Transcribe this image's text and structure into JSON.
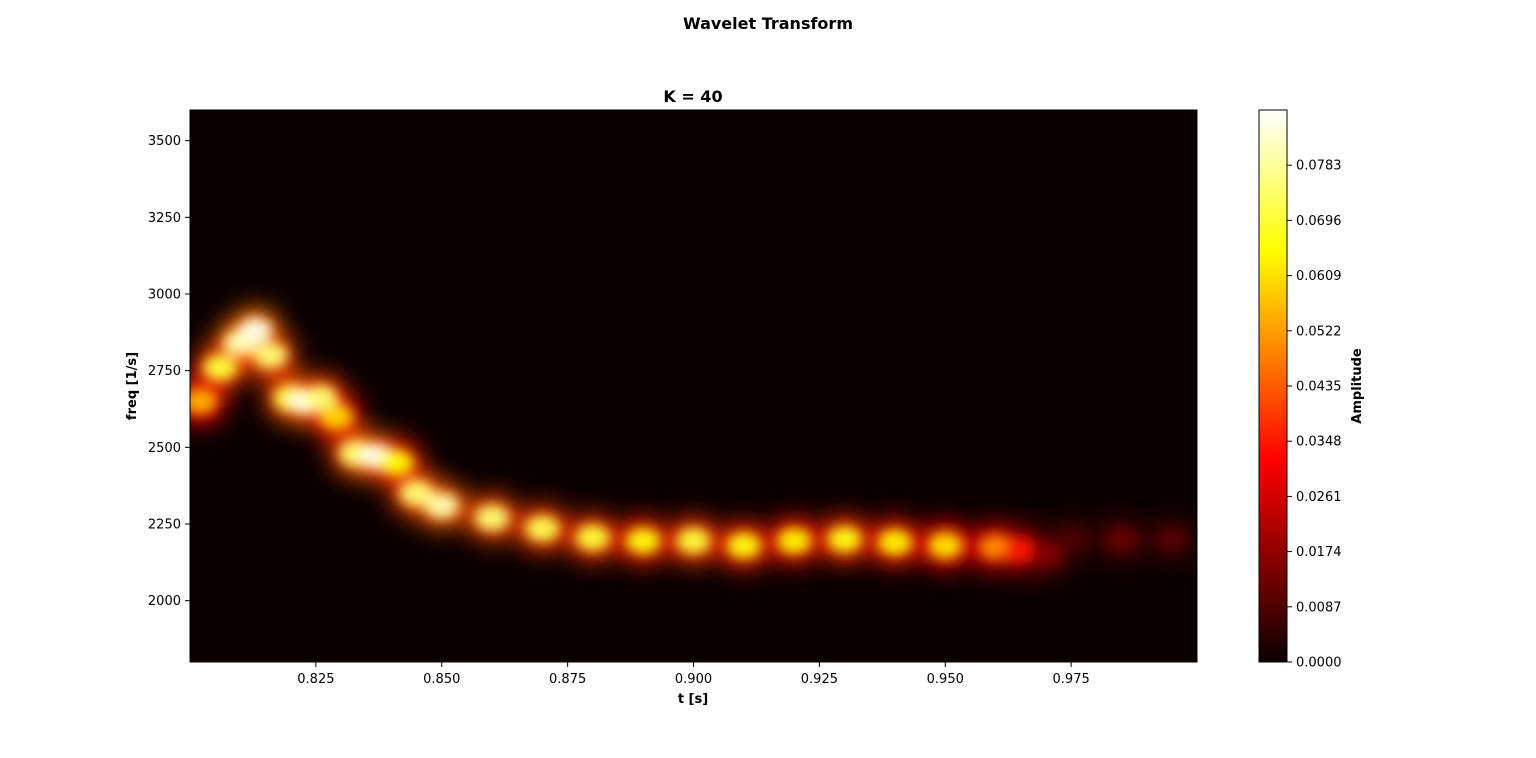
{
  "figure": {
    "suptitle": "Wavelet Transform"
  },
  "chart_data": {
    "type": "heatmap",
    "title": "K = 40",
    "xlabel": "t [s]",
    "ylabel": "freq [1/s]",
    "xlim": [
      0.8,
      1.0
    ],
    "ylim": [
      1800,
      3600
    ],
    "xticks": [
      0.825,
      0.85,
      0.875,
      0.9,
      0.925,
      0.95,
      0.975
    ],
    "xtick_labels": [
      "0.825",
      "0.850",
      "0.875",
      "0.900",
      "0.925",
      "0.950",
      "0.975"
    ],
    "yticks": [
      2000,
      2250,
      2500,
      2750,
      3000,
      3250,
      3500
    ],
    "ytick_labels": [
      "2000",
      "2250",
      "2500",
      "2750",
      "3000",
      "3250",
      "3500"
    ],
    "colormap": "hot",
    "colorbar": {
      "label": "Amplitude",
      "range": [
        0,
        0.087
      ],
      "ticks": [
        0.0,
        0.0087,
        0.0174,
        0.0261,
        0.0348,
        0.0435,
        0.0522,
        0.0609,
        0.0696,
        0.0783
      ],
      "tick_labels": [
        "0.0000",
        "0.0087",
        "0.0174",
        "0.0261",
        "0.0348",
        "0.0435",
        "0.0522",
        "0.0609",
        "0.0696",
        "0.0783"
      ]
    },
    "ridge": {
      "t": [
        0.802,
        0.806,
        0.81,
        0.813,
        0.816,
        0.82,
        0.823,
        0.826,
        0.829,
        0.833,
        0.837,
        0.841,
        0.845,
        0.85,
        0.86,
        0.87,
        0.88,
        0.89,
        0.9,
        0.91,
        0.92,
        0.93,
        0.94,
        0.95,
        0.96,
        0.965,
        0.97
      ],
      "freq": [
        2650,
        2760,
        2840,
        2880,
        2800,
        2660,
        2650,
        2660,
        2600,
        2480,
        2470,
        2450,
        2350,
        2310,
        2270,
        2235,
        2205,
        2195,
        2195,
        2180,
        2195,
        2200,
        2190,
        2180,
        2175,
        2165,
        2150
      ],
      "amplitude": [
        0.055,
        0.07,
        0.08,
        0.085,
        0.075,
        0.072,
        0.085,
        0.075,
        0.06,
        0.075,
        0.085,
        0.065,
        0.075,
        0.08,
        0.075,
        0.072,
        0.07,
        0.066,
        0.07,
        0.066,
        0.064,
        0.067,
        0.064,
        0.062,
        0.05,
        0.035,
        0.015
      ]
    },
    "weak_tail": {
      "t": [
        0.975,
        0.985,
        0.995
      ],
      "freq": [
        2200,
        2200,
        2200
      ],
      "amplitude": [
        0.008,
        0.011,
        0.009
      ]
    }
  }
}
